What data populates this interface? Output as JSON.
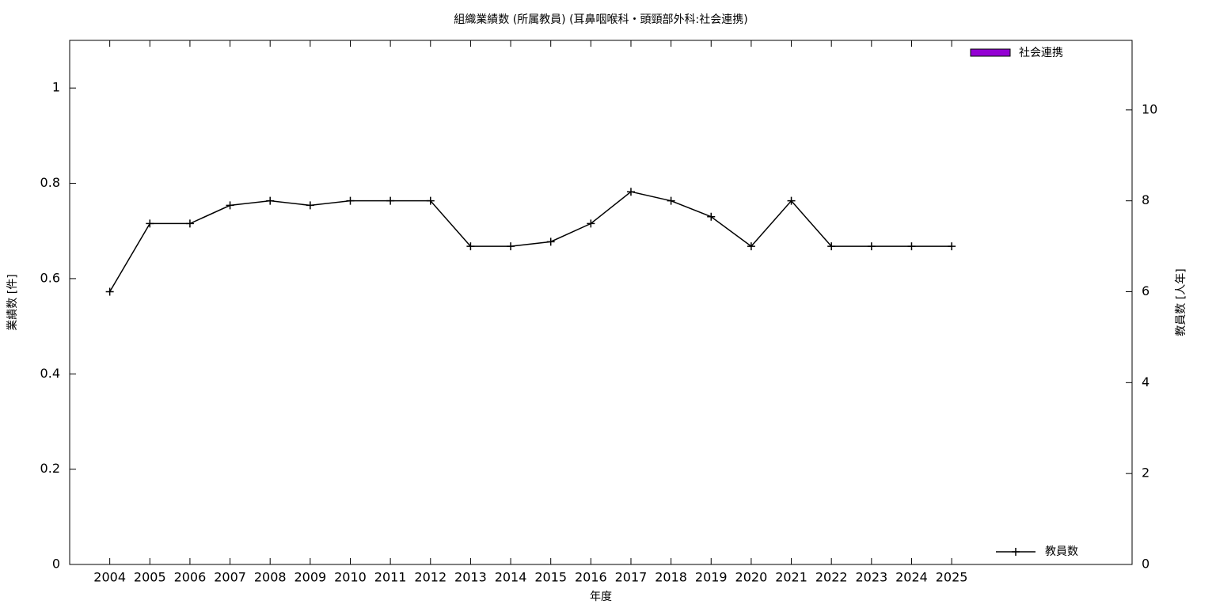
{
  "chart_data": {
    "type": "bar",
    "title": "組織業績数 (所属教員) (耳鼻咽喉科・頭頸部外科:社会連携)",
    "x_label": "年度",
    "y_label": "業績数 [件]",
    "y2_label": "教員数 [人年]",
    "categories": [
      "2004",
      "2005",
      "2006",
      "2007",
      "2008",
      "2009",
      "2010",
      "2011",
      "2012",
      "2013",
      "2014",
      "2015",
      "2016",
      "2017",
      "2018",
      "2019",
      "2020",
      "2021",
      "2022",
      "2023",
      "2024",
      "2025"
    ],
    "series": [
      {
        "name": "社会連携",
        "type": "bar",
        "color": "#9400d3",
        "values": [
          0,
          0,
          0,
          0,
          0,
          0,
          0,
          0,
          0,
          0,
          0,
          0,
          0,
          0,
          0,
          0,
          0,
          0,
          0,
          0,
          0,
          0
        ]
      },
      {
        "name": "教員数",
        "type": "line",
        "axis": "y2",
        "color": "#000000",
        "values": [
          6,
          7.5,
          7.5,
          7.9,
          8,
          7.9,
          8,
          8,
          8,
          7,
          7,
          7.1,
          7.5,
          8.2,
          8,
          7.65,
          7,
          8,
          7,
          7,
          7,
          7
        ]
      }
    ],
    "ylim": [
      0,
      1.1
    ],
    "yticks": [
      0,
      0.2,
      0.4,
      0.6,
      0.8,
      1
    ],
    "y2lim": [
      0,
      11.53
    ],
    "y2ticks": [
      0,
      2,
      4,
      6,
      8,
      10
    ],
    "grid": false
  }
}
